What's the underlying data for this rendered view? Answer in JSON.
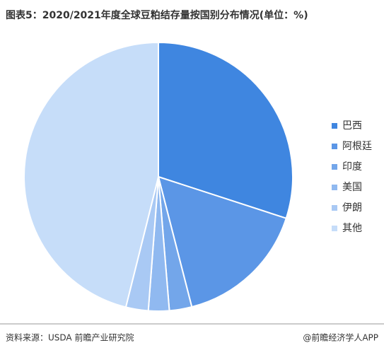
{
  "chart_data": {
    "type": "pie",
    "title": "图表5：2020/2021年度全球豆粕结存量按国别分布情况(单位：%)",
    "categories": [
      "巴西",
      "阿根廷",
      "印度",
      "美国",
      "伊朗",
      "其他"
    ],
    "values": [
      30,
      16,
      2.7,
      2.5,
      2.7,
      46.1
    ],
    "colors": [
      "#3f86e0",
      "#5b96e6",
      "#73a6ea",
      "#90b9f0",
      "#a9c9f4",
      "#c6ddf9"
    ],
    "legend": "right",
    "source": "资料来源：USDA 前瞻产业研究院",
    "credit": "@前瞻经济学人APP"
  }
}
